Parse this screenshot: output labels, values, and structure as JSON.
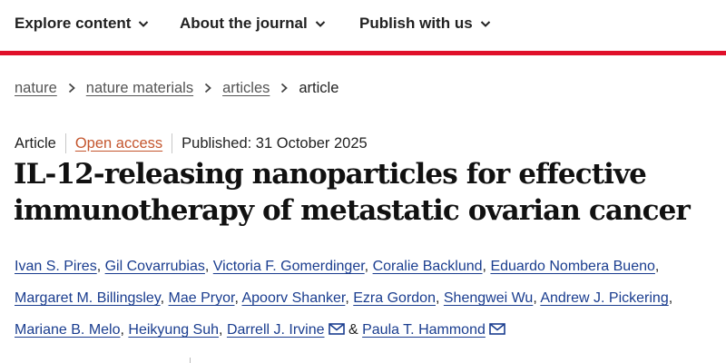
{
  "nav": {
    "items": [
      {
        "label": "Explore content"
      },
      {
        "label": "About the journal"
      },
      {
        "label": "Publish with us"
      }
    ]
  },
  "colors": {
    "brand_red": "#e0102a",
    "author_link": "#1a3d8f",
    "open_access": "#c4562e"
  },
  "breadcrumb": {
    "items": [
      "nature",
      "nature materials",
      "articles"
    ],
    "current": "article"
  },
  "article": {
    "type": "Article",
    "access": "Open access",
    "published": "Published: 31 October 2025",
    "title_line1": "IL-12-releasing nanoparticles for effective",
    "title_line2": "immunotherapy of metastatic ovarian cancer"
  },
  "authors": {
    "line1": [
      "Ivan S. Pires",
      "Gil Covarrubias",
      "Victoria F. Gomerdinger",
      "Coralie Backlund",
      "Eduardo Nombera Bueno"
    ],
    "line2": [
      "Margaret M. Billingsley",
      "Mae Pryor",
      "Apoorv Shanker",
      "Ezra Gordon",
      "Shengwei Wu",
      "Andrew J. Pickering"
    ],
    "line3": [
      "Mariane B. Melo",
      "Heikyung Suh",
      "Darrell J. Irvine"
    ],
    "ampersand": "&",
    "last": "Paula T. Hammond",
    "comma": ","
  },
  "icons": {
    "chevron": "chevron-down-icon",
    "separator": "chevron-right-icon",
    "mail": "mail-icon"
  }
}
